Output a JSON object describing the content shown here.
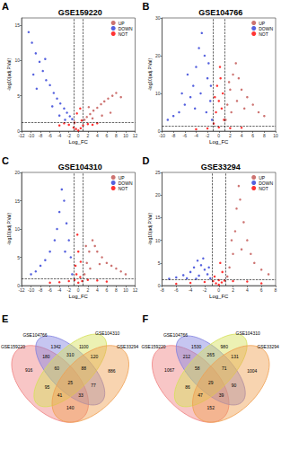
{
  "chart_data": [
    {
      "type": "scatter",
      "panel": "A",
      "title": "GSE159220",
      "xlabel": "Log_FC",
      "ylabel": "-log10(adj.P.Val)",
      "xlim": [
        -12,
        12
      ],
      "xticks": [
        -12,
        -10,
        -8,
        -6,
        -4,
        -2,
        0,
        2,
        4,
        6,
        8,
        10,
        12
      ],
      "ylim": [
        0,
        16
      ],
      "yticks": [
        0,
        5,
        10,
        15
      ],
      "grid": false,
      "legend": "upper right",
      "thresholds": {
        "x": [
          -1,
          1
        ],
        "y": 1.3
      },
      "series": [
        {
          "name": "UP",
          "color": "#c0504d",
          "x": [
            1.3,
            1.8,
            2.5,
            3.2,
            4,
            4.8,
            5.5,
            6.3,
            7.2,
            8,
            3,
            5,
            6.8,
            2.2,
            9
          ],
          "values": [
            1.6,
            2.0,
            2.4,
            2.9,
            3.3,
            3.8,
            4.2,
            4.6,
            5.0,
            5.4,
            1.8,
            2.2,
            2.6,
            3.4,
            4.8
          ]
        },
        {
          "name": "DOWN",
          "color": "#2a3ad6",
          "x": [
            -10.5,
            -9.8,
            -9,
            -8.2,
            -7.5,
            -6.8,
            -6,
            -5.2,
            -4.5,
            -3.8,
            -3,
            -2.4,
            -1.8,
            -1.3,
            -7,
            -5.5,
            -4,
            -8.8,
            -2.8,
            -9.5
          ],
          "values": [
            14,
            12.5,
            11,
            9.8,
            8.5,
            7.2,
            6.5,
            5.4,
            4.6,
            3.9,
            3.2,
            2.6,
            2.1,
            1.7,
            10.2,
            3.5,
            2.2,
            6,
            1.6,
            8
          ]
        },
        {
          "name": "NOT",
          "color": "#ff0000",
          "x": [
            -1,
            -0.5,
            0,
            0.5,
            1,
            -2,
            2,
            -3,
            3,
            -4,
            4,
            -0.8,
            0.7,
            -0.3,
            0.4
          ],
          "values": [
            0.5,
            0.3,
            0.1,
            0.4,
            0.8,
            0.9,
            1.0,
            1.1,
            0.9,
            0.8,
            1.1,
            1.2,
            1.5,
            2.5,
            3.2
          ]
        }
      ]
    },
    {
      "type": "scatter",
      "panel": "B",
      "title": "GSE104766",
      "xlabel": "Log_FC",
      "ylabel": "-log10(adj.P.Val)",
      "xlim": [
        -10,
        10
      ],
      "xticks": [
        -10,
        -8,
        -6,
        -4,
        -2,
        0,
        2,
        4,
        6,
        8,
        10
      ],
      "ylim": [
        0,
        30
      ],
      "yticks": [
        0,
        10,
        20,
        30
      ],
      "grid": false,
      "legend": "upper right",
      "thresholds": {
        "x": [
          -1,
          1
        ],
        "y": 1.3
      },
      "series": [
        {
          "name": "UP",
          "color": "#c0504d",
          "x": [
            1.2,
            1.5,
            2,
            2.5,
            3,
            3.5,
            4,
            5,
            6,
            7,
            8,
            2.2,
            3.2,
            4.5,
            1.8
          ],
          "values": [
            3,
            7,
            11,
            15,
            18,
            14,
            11,
            9,
            7,
            5,
            4,
            5,
            8,
            6,
            13
          ]
        },
        {
          "name": "DOWN",
          "color": "#2a3ad6",
          "x": [
            -1.2,
            -1.5,
            -2,
            -2.5,
            -3,
            -3.5,
            -4,
            -4.5,
            -5,
            -6,
            -7,
            -8,
            -2.2,
            -3.2,
            -1.8,
            -5.5,
            -6.5,
            -9,
            -1.4,
            -4.2
          ],
          "values": [
            3,
            8,
            14,
            20,
            26,
            22,
            17,
            12,
            9,
            7,
            5,
            4,
            5,
            10,
            18,
            15,
            10,
            3,
            12,
            6
          ]
        },
        {
          "name": "NOT",
          "color": "#ff0000",
          "x": [
            -0.9,
            -0.5,
            0,
            0.5,
            0.9,
            -0.3,
            0.3,
            -0.7,
            0.7,
            0,
            -2,
            2,
            -4,
            4,
            0.2
          ],
          "values": [
            2,
            5,
            8,
            6,
            3,
            12,
            14,
            9,
            10,
            1,
            0.7,
            0.8,
            0.5,
            0.9,
            17
          ]
        }
      ]
    },
    {
      "type": "scatter",
      "panel": "C",
      "title": "GSE104310",
      "xlabel": "Log_FC",
      "ylabel": "-log10(adj.P.Val)",
      "xlim": [
        -12,
        12
      ],
      "xticks": [
        -12,
        -10,
        -8,
        -6,
        -4,
        -2,
        0,
        2,
        4,
        6,
        8,
        10,
        12
      ],
      "ylim": [
        0,
        20
      ],
      "yticks": [
        0,
        5,
        10,
        15,
        20
      ],
      "grid": false,
      "legend": "upper right",
      "thresholds": {
        "x": [
          -1,
          1
        ],
        "y": 1.3
      },
      "series": [
        {
          "name": "UP",
          "color": "#c0504d",
          "x": [
            1.3,
            1.8,
            2.3,
            3,
            3.5,
            4,
            5,
            6,
            7,
            8,
            9,
            2.5,
            4.5,
            10,
            1.6
          ],
          "values": [
            2,
            4,
            6,
            8,
            7,
            6,
            5,
            4,
            3.5,
            3,
            2.5,
            3,
            3.8,
            2,
            7
          ]
        },
        {
          "name": "DOWN",
          "color": "#2a3ad6",
          "x": [
            -1.3,
            -1.6,
            -2,
            -2.5,
            -3,
            -3.5,
            -4,
            -4.5,
            -5,
            -6,
            -7,
            -8,
            -9,
            -10,
            -2.8
          ],
          "values": [
            2,
            5,
            8,
            11,
            15,
            17,
            13,
            10,
            8,
            6,
            4.5,
            3.5,
            2.5,
            2,
            6
          ]
        },
        {
          "name": "NOT",
          "color": "#ff0000",
          "x": [
            -0.8,
            -0.4,
            0,
            0.4,
            0.8,
            -2,
            2,
            -4,
            4,
            -0.6,
            0.5,
            -6,
            6,
            0,
            -0.2
          ],
          "values": [
            1,
            2,
            0.5,
            1.5,
            0.8,
            0.8,
            1,
            0.6,
            0.9,
            3.5,
            4.2,
            0.5,
            0.7,
            6,
            9
          ]
        }
      ]
    },
    {
      "type": "scatter",
      "panel": "D",
      "title": "GSE33294",
      "xlabel": "Log_FC",
      "ylabel": "-log10(adj.P.Val)",
      "xlim": [
        -8,
        8
      ],
      "xticks": [
        -8,
        -6,
        -4,
        -2,
        0,
        2,
        4,
        6,
        8
      ],
      "ylim": [
        0,
        25
      ],
      "yticks": [
        0,
        5,
        10,
        15,
        20,
        25
      ],
      "grid": false,
      "legend": "upper right",
      "thresholds": {
        "x": [
          -1,
          1
        ],
        "y": 1.3
      },
      "series": [
        {
          "name": "UP",
          "color": "#c0504d",
          "x": [
            1.2,
            1.5,
            2,
            2.3,
            2.5,
            2.8,
            3,
            3.5,
            4,
            4.5,
            5,
            6,
            7,
            3.2,
            1.8
          ],
          "values": [
            2,
            4,
            7,
            12,
            17,
            22,
            19,
            14,
            10,
            7,
            5,
            3.5,
            2.5,
            8,
            10
          ]
        },
        {
          "name": "DOWN",
          "color": "#2a3ad6",
          "x": [
            -1.2,
            -1.6,
            -2,
            -2.5,
            -3,
            -3.5,
            -4,
            -5,
            -6,
            -2.8,
            -1.4,
            -4.5,
            -7,
            -2.2,
            -3.2
          ],
          "values": [
            1.6,
            2.5,
            3.5,
            4.5,
            5.5,
            4,
            3,
            2.3,
            1.8,
            2.2,
            4,
            1.6,
            1.5,
            6,
            1.5
          ]
        },
        {
          "name": "NOT",
          "color": "#ff0000",
          "x": [
            -0.8,
            -0.4,
            0,
            0.4,
            0.8,
            -2,
            2,
            -4,
            4,
            -0.6,
            0.5,
            0.2,
            -6,
            6,
            0
          ],
          "values": [
            1,
            0.5,
            0.2,
            0.7,
            1.1,
            0.8,
            1,
            0.6,
            0.9,
            2,
            3,
            5,
            0.4,
            0.5,
            1.2
          ]
        }
      ]
    },
    {
      "type": "venn",
      "panel": "E",
      "sets": [
        {
          "name": "GSE159220",
          "color": "#f08080"
        },
        {
          "name": "GSE104766",
          "color": "#8080e0"
        },
        {
          "name": "GSE104310",
          "color": "#d4e157"
        },
        {
          "name": "GSE33294",
          "color": "#f0a050"
        }
      ],
      "regions": [
        {
          "sets": [
            0
          ],
          "value": 916
        },
        {
          "sets": [
            1
          ],
          "value": 1342
        },
        {
          "sets": [
            2
          ],
          "value": 1100
        },
        {
          "sets": [
            3
          ],
          "value": 886
        },
        {
          "sets": [
            0,
            1
          ],
          "value": 180
        },
        {
          "sets": [
            0,
            2
          ],
          "value": 95
        },
        {
          "sets": [
            0,
            3
          ],
          "value": 140
        },
        {
          "sets": [
            1,
            2
          ],
          "value": 310
        },
        {
          "sets": [
            1,
            3
          ],
          "value": 77
        },
        {
          "sets": [
            2,
            3
          ],
          "value": 120
        },
        {
          "sets": [
            0,
            1,
            2
          ],
          "value": 60
        },
        {
          "sets": [
            0,
            1,
            3
          ],
          "value": 33
        },
        {
          "sets": [
            0,
            2,
            3
          ],
          "value": 41
        },
        {
          "sets": [
            1,
            2,
            3
          ],
          "value": 88
        },
        {
          "sets": [
            0,
            1,
            2,
            3
          ],
          "value": 25
        }
      ]
    },
    {
      "type": "venn",
      "panel": "F",
      "sets": [
        {
          "name": "GSE159220",
          "color": "#f08080"
        },
        {
          "name": "GSE104766",
          "color": "#8080e0"
        },
        {
          "name": "GSE104310",
          "color": "#d4e157"
        },
        {
          "name": "GSE33294",
          "color": "#f0a050"
        }
      ],
      "regions": [
        {
          "sets": [
            0
          ],
          "value": 1067
        },
        {
          "sets": [
            1
          ],
          "value": 1530
        },
        {
          "sets": [
            2
          ],
          "value": 980
        },
        {
          "sets": [
            3
          ],
          "value": 1004
        },
        {
          "sets": [
            0,
            1
          ],
          "value": 212
        },
        {
          "sets": [
            0,
            2
          ],
          "value": 86
        },
        {
          "sets": [
            0,
            3
          ],
          "value": 152
        },
        {
          "sets": [
            1,
            2
          ],
          "value": 265
        },
        {
          "sets": [
            1,
            3
          ],
          "value": 90
        },
        {
          "sets": [
            2,
            3
          ],
          "value": 131
        },
        {
          "sets": [
            0,
            1,
            2
          ],
          "value": 58
        },
        {
          "sets": [
            0,
            1,
            3
          ],
          "value": 39
        },
        {
          "sets": [
            0,
            2,
            3
          ],
          "value": 47
        },
        {
          "sets": [
            1,
            2,
            3
          ],
          "value": 71
        },
        {
          "sets": [
            0,
            1,
            2,
            3
          ],
          "value": 29
        }
      ]
    }
  ]
}
